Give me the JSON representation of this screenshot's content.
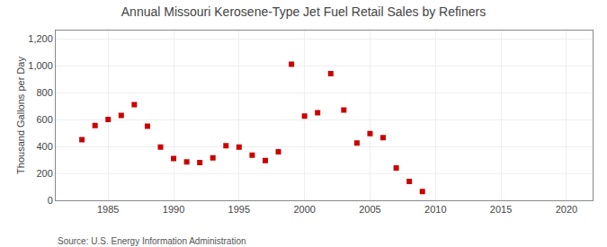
{
  "chart_data": {
    "type": "scatter",
    "title": "Annual Missouri Kerosene-Type Jet Fuel Retail Sales by Refiners",
    "y_label": "Thousand Gallons per Day",
    "annotations": [
      "Source: U.S. Energy Information Administration"
    ],
    "x": [
      1983,
      1984,
      1985,
      1986,
      1987,
      1988,
      1989,
      1990,
      1991,
      1992,
      1993,
      1994,
      1995,
      1996,
      1997,
      1998,
      1999,
      2000,
      2001,
      2002,
      2003,
      2004,
      2005,
      2006,
      2007,
      2008,
      2009,
      2010,
      2011
    ],
    "values": [
      450,
      555,
      600,
      630,
      710,
      550,
      395,
      310,
      285,
      280,
      315,
      405,
      395,
      335,
      295,
      360,
      1010,
      625,
      650,
      940,
      670,
      425,
      495,
      465,
      240,
      140,
      65,
      null,
      null
    ],
    "color": "#cc0000",
    "marker": "square",
    "xlim": [
      1981,
      2022
    ],
    "xticks": [
      1985,
      1990,
      1995,
      2000,
      2005,
      2010,
      2015,
      2020
    ],
    "ylim": [
      0,
      1260
    ],
    "yticks": [
      0,
      200,
      400,
      600,
      800,
      {
        "value": 1000,
        "label": "1,000"
      },
      {
        "value": 1200,
        "label": "1,200"
      }
    ],
    "grid": true
  }
}
